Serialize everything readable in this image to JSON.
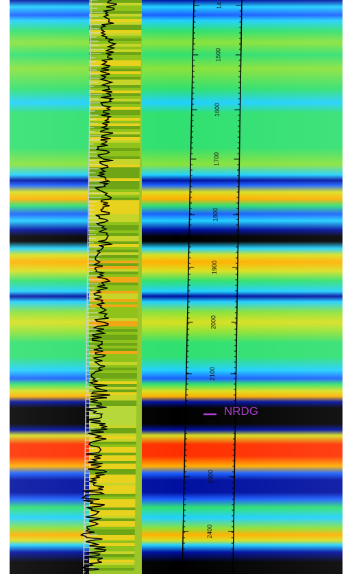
{
  "horizon": {
    "label": "NRDG",
    "color": "#b040d0"
  },
  "depth_ticks": [
    "14",
    "1500",
    "1600",
    "1700",
    "1800",
    "1900",
    "2000",
    "2100",
    "22",
    "2300",
    "2400"
  ],
  "colors": {
    "background": "#ffffff",
    "seismic_palette": [
      "#000000",
      "#0010a0",
      "#1a60ff",
      "#20d0ff",
      "#30e070",
      "#8ae23a",
      "#d8e020",
      "#ffb000",
      "#ff3000"
    ],
    "track_colors": [
      "#8fc21a",
      "#6da517",
      "#c7d42a",
      "#e8d21d",
      "#f2a816",
      "#b7d83a"
    ],
    "curve": "#000000",
    "scale_lines": "#000000"
  }
}
